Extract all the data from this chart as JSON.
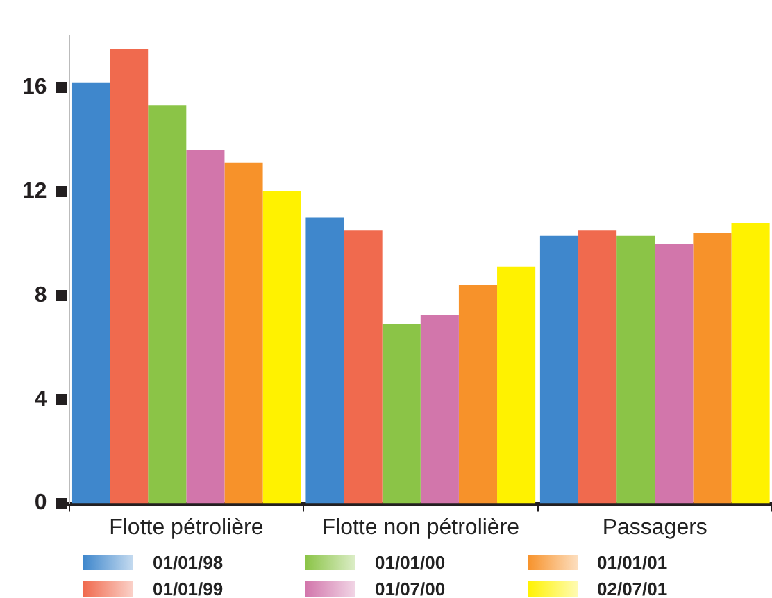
{
  "chart_data": {
    "type": "bar",
    "categories": [
      "Flotte pétrolière",
      "Flotte non pétrolière",
      "Passagers"
    ],
    "series": [
      {
        "name": "01/01/98",
        "color": "#3f87cc",
        "values": [
          16.2,
          11.0,
          10.3
        ]
      },
      {
        "name": "01/01/99",
        "color": "#f06a4e",
        "values": [
          17.5,
          10.5,
          10.5
        ]
      },
      {
        "name": "01/01/00",
        "color": "#8bc447",
        "values": [
          15.3,
          6.9,
          10.3
        ]
      },
      {
        "name": "01/07/00",
        "color": "#d276ab",
        "values": [
          13.6,
          7.25,
          10.0
        ]
      },
      {
        "name": "01/01/01",
        "color": "#f7922a",
        "values": [
          13.1,
          8.4,
          10.4
        ]
      },
      {
        "name": "02/07/01",
        "color": "#fff200",
        "values": [
          12.0,
          9.1,
          10.8
        ]
      }
    ],
    "ylim": [
      0,
      18
    ],
    "yticks": [
      0,
      4,
      8,
      12,
      16
    ],
    "grid": false,
    "legend": "bottom"
  }
}
